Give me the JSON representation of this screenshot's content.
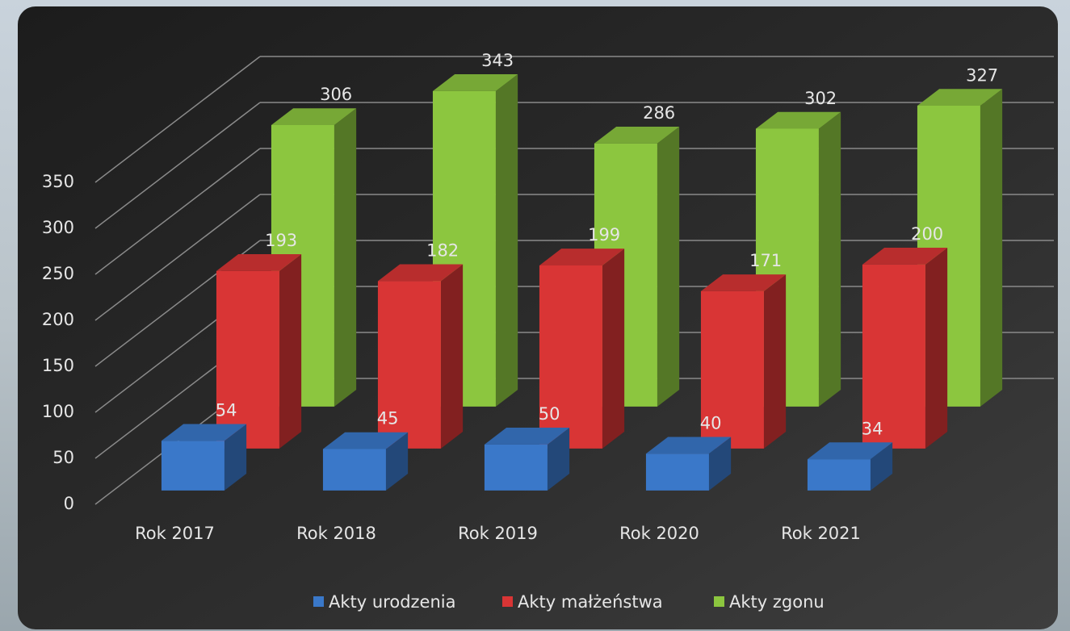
{
  "chart_data": {
    "type": "bar3d",
    "categories": [
      "Rok 2017",
      "Rok 2018",
      "Rok 2019",
      "Rok 2020",
      "Rok 2021"
    ],
    "series": [
      {
        "name": "Akty urodzenia",
        "color": "#3a78c9",
        "values": [
          54,
          45,
          50,
          40,
          34
        ]
      },
      {
        "name": "Akty małżeństwa",
        "color": "#d93535",
        "values": [
          193,
          182,
          199,
          171,
          200
        ]
      },
      {
        "name": "Akty zgonu",
        "color": "#8cc63f",
        "values": [
          306,
          343,
          286,
          302,
          327
        ]
      }
    ],
    "ylim": [
      0,
      350
    ],
    "yticks": [
      0,
      50,
      100,
      150,
      200,
      250,
      300,
      350
    ],
    "grid": true,
    "legend": "bottom"
  }
}
